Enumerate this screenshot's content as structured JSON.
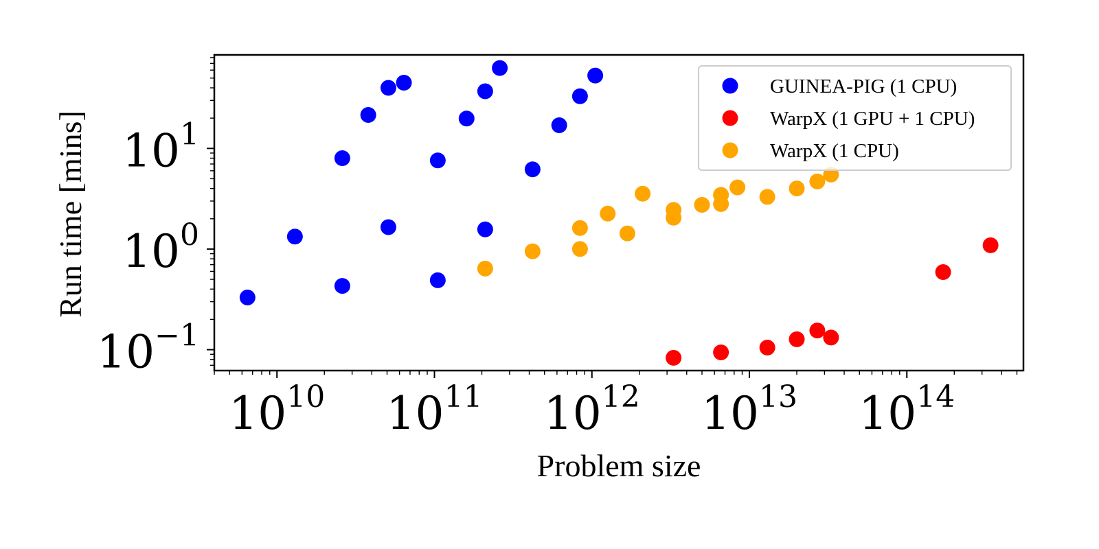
{
  "chart_data": {
    "type": "scatter",
    "title": "",
    "xlabel": "Problem size",
    "ylabel": "Run time [mins]",
    "xscale": "log",
    "yscale": "log",
    "xlim": [
      4000000000.0,
      550000000000000.0
    ],
    "ylim": [
      0.062,
      85
    ],
    "grid": false,
    "legend_position": "top-right",
    "x_ticks": [
      {
        "base": "10",
        "exp": "10",
        "value": 10000000000.0
      },
      {
        "base": "10",
        "exp": "11",
        "value": 100000000000.0
      },
      {
        "base": "10",
        "exp": "12",
        "value": 1000000000000.0
      },
      {
        "base": "10",
        "exp": "13",
        "value": 10000000000000.0
      },
      {
        "base": "10",
        "exp": "14",
        "value": 100000000000000.0
      }
    ],
    "y_ticks": [
      {
        "base": "10",
        "exp": "−1",
        "value": 0.1
      },
      {
        "base": "10",
        "exp": "0",
        "value": 1
      },
      {
        "base": "10",
        "exp": "1",
        "value": 10
      }
    ],
    "series": [
      {
        "name": "GUINEA-PIG (1 CPU)",
        "color": "#0000ff",
        "points": [
          [
            6500000000.0,
            0.33
          ],
          [
            13000000000.0,
            1.33
          ],
          [
            26000000000.0,
            8.0
          ],
          [
            26000000000.0,
            0.43
          ],
          [
            38000000000.0,
            21.5
          ],
          [
            51000000000.0,
            1.65
          ],
          [
            51000000000.0,
            40.0
          ],
          [
            64000000000.0,
            45.0
          ],
          [
            105000000000.0,
            7.6
          ],
          [
            105000000000.0,
            0.49
          ],
          [
            160000000000.0,
            19.8
          ],
          [
            210000000000.0,
            1.57
          ],
          [
            210000000000.0,
            37.0
          ],
          [
            260000000000.0,
            63.0
          ],
          [
            420000000000.0,
            6.2
          ],
          [
            620000000000.0,
            17.0
          ],
          [
            840000000000.0,
            33.0
          ],
          [
            1050000000000.0,
            53.0
          ]
        ]
      },
      {
        "name": "WarpX (1 GPU + 1 CPU)",
        "color": "#ff0000",
        "points": [
          [
            3300000000000.0,
            0.083
          ],
          [
            6600000000000.0,
            0.094
          ],
          [
            13000000000000.0,
            0.105
          ],
          [
            20000000000000.0,
            0.127
          ],
          [
            27000000000000.0,
            0.155
          ],
          [
            33000000000000.0,
            0.132
          ],
          [
            170000000000000.0,
            0.59
          ],
          [
            340000000000000.0,
            1.09
          ]
        ]
      },
      {
        "name": "WarpX (1 CPU)",
        "color": "#ffa500",
        "points": [
          [
            210000000000.0,
            0.64
          ],
          [
            420000000000.0,
            0.95
          ],
          [
            840000000000.0,
            1.0
          ],
          [
            840000000000.0,
            1.62
          ],
          [
            1260000000000.0,
            2.25
          ],
          [
            1680000000000.0,
            1.43
          ],
          [
            2100000000000.0,
            3.55
          ],
          [
            3300000000000.0,
            2.45
          ],
          [
            3300000000000.0,
            2.05
          ],
          [
            5000000000000.0,
            2.75
          ],
          [
            6600000000000.0,
            2.8
          ],
          [
            6600000000000.0,
            3.45
          ],
          [
            8400000000000.0,
            4.1
          ],
          [
            13000000000000.0,
            3.3
          ],
          [
            20000000000000.0,
            4.0
          ],
          [
            27000000000000.0,
            4.7
          ],
          [
            33000000000000.0,
            5.5
          ]
        ]
      }
    ]
  }
}
